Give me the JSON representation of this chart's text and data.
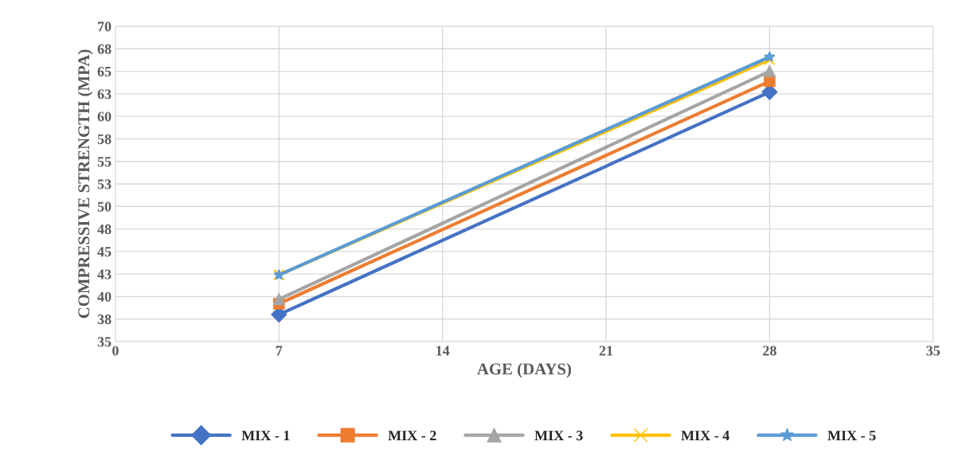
{
  "chart_data": {
    "type": "line",
    "xlabel": "AGE (DAYS)",
    "ylabel": "COMPRESSIVE STRENGTH (MPA)",
    "x": [
      7,
      28
    ],
    "series": [
      {
        "name": "MIX - 1",
        "color": "#4472c4",
        "marker": "diamond",
        "values": [
          38.0,
          62.7
        ]
      },
      {
        "name": "MIX - 2",
        "color": "#ed7d31",
        "marker": "square",
        "values": [
          39.2,
          63.9
        ]
      },
      {
        "name": "MIX - 3",
        "color": "#a5a5a5",
        "marker": "triangle",
        "values": [
          39.7,
          65.0
        ]
      },
      {
        "name": "MIX - 4",
        "color": "#ffc000",
        "marker": "cross",
        "values": [
          42.4,
          66.3
        ]
      },
      {
        "name": "MIX - 5",
        "color": "#5b9bd5",
        "marker": "star",
        "values": [
          42.4,
          66.6
        ]
      }
    ],
    "xlim": [
      0,
      35
    ],
    "xticks": [
      0,
      7,
      14,
      21,
      28,
      35
    ],
    "ylim": [
      35,
      70
    ],
    "yticks": [
      35,
      {
        "value": 37.5,
        "label": "38"
      },
      40,
      {
        "value": 42.5,
        "label": "43"
      },
      45,
      {
        "value": 47.5,
        "label": "48"
      },
      50,
      {
        "value": 52.5,
        "label": "53"
      },
      55,
      {
        "value": 57.5,
        "label": "58"
      },
      60,
      {
        "value": 62.5,
        "label": "63"
      },
      65,
      {
        "value": 67.5,
        "label": "68"
      },
      70
    ],
    "grid": true,
    "legend": "bottom",
    "line_style": "solid"
  }
}
